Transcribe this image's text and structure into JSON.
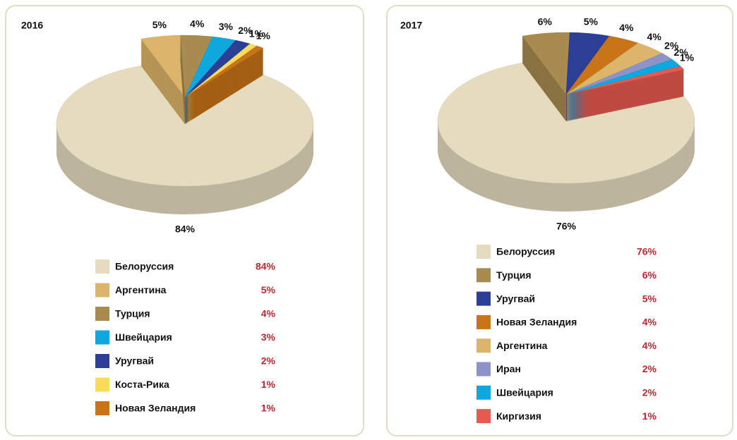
{
  "chart_data": [
    {
      "type": "pie",
      "title": "2016",
      "categories": [
        "Белоруссия",
        "Аргентина",
        "Турция",
        "Швейцария",
        "Уругвай",
        "Коста-Рика",
        "Новая Зеландия"
      ],
      "values": [
        84,
        5,
        4,
        3,
        2,
        1,
        1
      ],
      "value_labels": [
        "84%",
        "5%",
        "4%",
        "3%",
        "2%",
        "1%",
        "1%"
      ],
      "colors": [
        "#e5dcc0",
        "#ddb56a",
        "#a88b50",
        "#0ea8df",
        "#2b3f96",
        "#f9dc5c",
        "#c87417"
      ],
      "legend": true
    },
    {
      "type": "pie",
      "title": "2017",
      "categories": [
        "Белоруссия",
        "Турция",
        "Уругвай",
        "Новая Зеландия",
        "Аргентина",
        "Иран",
        "Швейцария",
        "Киргизия"
      ],
      "values": [
        76,
        6,
        5,
        4,
        4,
        2,
        2,
        1
      ],
      "value_labels": [
        "76%",
        "6%",
        "5%",
        "4%",
        "4%",
        "2%",
        "2%",
        "1%"
      ],
      "colors": [
        "#e5dcc0",
        "#a88b50",
        "#2b3f96",
        "#c87417",
        "#ddb56a",
        "#8b93c8",
        "#0ea8df",
        "#e85a50"
      ],
      "legend": true
    }
  ]
}
